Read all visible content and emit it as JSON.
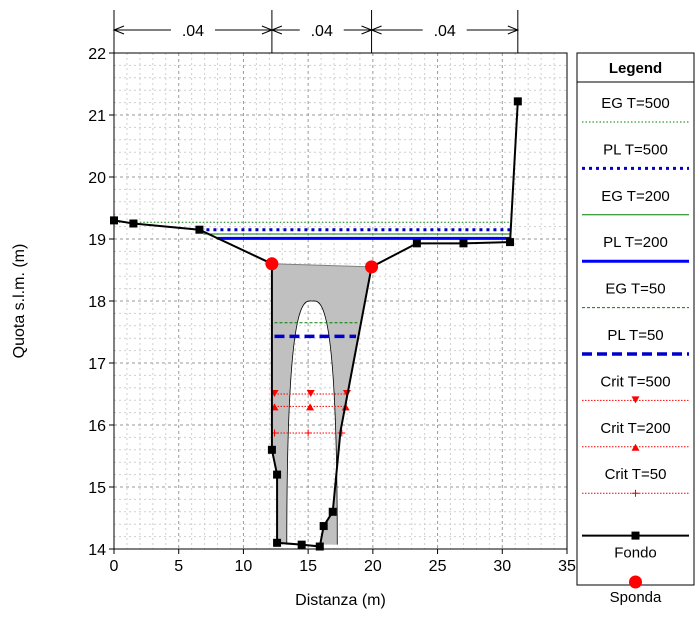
{
  "chart_data": {
    "type": "line",
    "xlabel": "Distanza (m)",
    "ylabel": "Quota s.l.m. (m)",
    "xlim": [
      0,
      35
    ],
    "ylim": [
      14,
      22
    ],
    "xticks": [
      0,
      5,
      10,
      15,
      20,
      25,
      30,
      35
    ],
    "yticks": [
      14,
      15,
      16,
      17,
      18,
      19,
      20,
      21,
      22
    ],
    "grid": true,
    "minor_grid": true,
    "manning": {
      "labels": [
        ".04",
        ".04",
        ".04"
      ],
      "breaks": [
        0,
        12.2,
        19.9,
        31.2
      ]
    },
    "legend": {
      "title": "Legend",
      "placement": "right",
      "entries": [
        {
          "label": "EG T=500",
          "color": "#008000",
          "style": "dotted-thin"
        },
        {
          "label": "PL T=500",
          "color": "#0000cc",
          "style": "dotted-thick"
        },
        {
          "label": "EG T=200",
          "color": "#008000",
          "style": "solid-thin"
        },
        {
          "label": "PL T=200",
          "color": "#0000ff",
          "style": "solid-thick"
        },
        {
          "label": "EG T=50",
          "color": "#008000",
          "style": "dashed-thin"
        },
        {
          "label": "PL T=50",
          "color": "#0000cc",
          "style": "dashed-thick"
        },
        {
          "label": "Crit T=500",
          "color": "#ff0000",
          "style": "dotted-triangle-down"
        },
        {
          "label": "Crit T=200",
          "color": "#ff0000",
          "style": "dotted-triangle-up"
        },
        {
          "label": "Crit T=50",
          "color": "#ff0000",
          "style": "dotted-plus"
        },
        {
          "label": "Fondo",
          "color": "#000000",
          "style": "solid-square"
        },
        {
          "label": "Sponda",
          "color": "#ff0000",
          "style": "circle"
        }
      ]
    },
    "series": [
      {
        "name": "Fondo",
        "color": "#000000",
        "points": [
          [
            0,
            19.3
          ],
          [
            1.5,
            19.25
          ],
          [
            6.6,
            19.15
          ],
          [
            12.2,
            18.6
          ],
          [
            12.2,
            15.6
          ],
          [
            12.6,
            15.2
          ],
          [
            12.6,
            14.1
          ],
          [
            14.5,
            14.07
          ],
          [
            15.9,
            14.04
          ],
          [
            16.2,
            14.37
          ],
          [
            16.9,
            14.6
          ],
          [
            17.5,
            15.9
          ],
          [
            19.9,
            18.55
          ],
          [
            23.4,
            18.93
          ],
          [
            27.0,
            18.93
          ],
          [
            30.6,
            18.95
          ],
          [
            31.2,
            21.22
          ]
        ]
      },
      {
        "name": "Sponda",
        "color": "#ff0000",
        "points": [
          [
            12.2,
            18.6
          ],
          [
            19.9,
            18.55
          ]
        ]
      },
      {
        "name": "EG T=500",
        "color": "#008000",
        "x_range": [
          0.1,
          30.7
        ],
        "y": 19.27
      },
      {
        "name": "PL T=500",
        "color": "#0000cc",
        "x_range": [
          6.6,
          30.7
        ],
        "y": 19.15
      },
      {
        "name": "EG T=200",
        "color": "#008000",
        "x_range": [
          6.9,
          30.7
        ],
        "y": 19.08
      },
      {
        "name": "PL T=200",
        "color": "#0000ff",
        "x_range": [
          8.0,
          30.7
        ],
        "y": 19.01
      },
      {
        "name": "EG T=50",
        "color": "#008000",
        "x_range": [
          12.4,
          18.8
        ],
        "y": 17.65
      },
      {
        "name": "PL T=50",
        "color": "#0000cc",
        "x_range": [
          12.4,
          18.7
        ],
        "y": 17.43
      },
      {
        "name": "Crit T=500",
        "color": "#ff0000",
        "x_range": [
          12.4,
          18.0
        ],
        "y": 16.5
      },
      {
        "name": "Crit T=200",
        "color": "#ff0000",
        "x_range": [
          12.4,
          17.9
        ],
        "y": 16.3
      },
      {
        "name": "Crit T=50",
        "color": "#ff0000",
        "x_range": [
          12.4,
          17.6
        ],
        "y": 15.87
      }
    ],
    "flow_area": {
      "top_y": 18.6,
      "outer": [
        [
          12.2,
          18.6
        ],
        [
          12.2,
          15.6
        ],
        [
          12.6,
          15.2
        ],
        [
          12.6,
          14.1
        ],
        [
          14.5,
          14.07
        ],
        [
          15.9,
          14.04
        ],
        [
          16.2,
          14.37
        ],
        [
          16.9,
          14.6
        ],
        [
          17.5,
          15.9
        ],
        [
          19.9,
          18.55
        ]
      ],
      "pier_arch": {
        "center_x": 15.3,
        "half_width": 1.95,
        "top_y": 18.0,
        "base_y": 14.07
      }
    }
  }
}
